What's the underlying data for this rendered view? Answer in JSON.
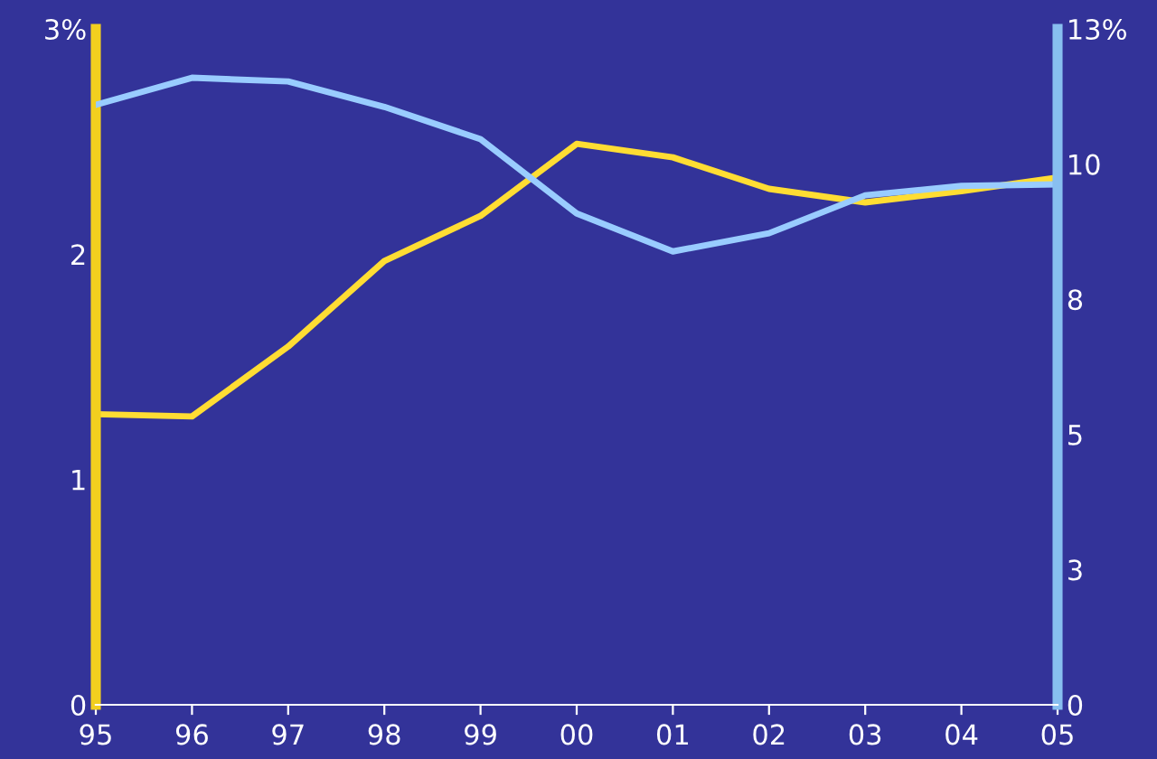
{
  "chart_data": {
    "type": "line",
    "categories": [
      "95",
      "96",
      "97",
      "98",
      "99",
      "00",
      "01",
      "02",
      "03",
      "04",
      "05"
    ],
    "series": [
      {
        "color": "#ffdd33",
        "values": [
          1.29,
          1.28,
          1.59,
          1.97,
          2.17,
          2.49,
          2.43,
          2.29,
          2.23,
          2.28,
          2.34
        ]
      },
      {
        "color": "#99ccff",
        "axis": "y2",
        "values": [
          11.54,
          12.06,
          11.99,
          11.5,
          10.88,
          9.45,
          8.72,
          9.07,
          9.8,
          9.98,
          10.01
        ]
      }
    ],
    "ylim": [
      0,
      3
    ],
    "yticks": [
      0,
      1,
      2,
      {
        "value": 3,
        "label": "3%"
      }
    ],
    "y2lim": [
      0,
      13
    ],
    "y2ticks": [
      0,
      {
        "value": 2.6,
        "label": "3"
      },
      {
        "value": 5.2,
        "label": "5"
      },
      {
        "value": 7.8,
        "label": "8"
      },
      {
        "value": 10.4,
        "label": "10"
      },
      {
        "value": 13,
        "label": "13%"
      }
    ],
    "grid": false,
    "legend": false
  }
}
